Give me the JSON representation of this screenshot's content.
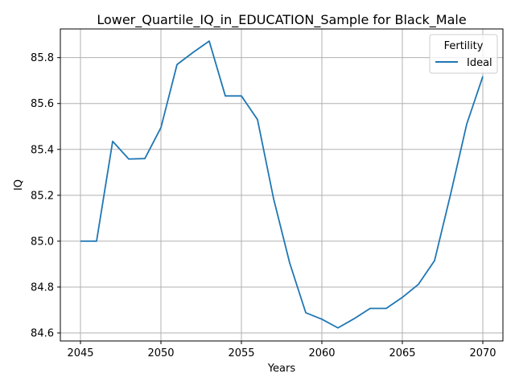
{
  "chart_data": {
    "type": "line",
    "title": "Lower_Quartile_IQ_in_EDUCATION_Sample for Black_Male",
    "xlabel": "Years",
    "ylabel": "IQ",
    "xlim": [
      2043.75,
      2071.25
    ],
    "ylim": [
      84.565,
      85.925
    ],
    "xticks": [
      2045,
      2050,
      2055,
      2060,
      2065,
      2070
    ],
    "yticks": [
      84.6,
      84.8,
      85.0,
      85.2,
      85.4,
      85.6,
      85.8
    ],
    "ytick_labels": [
      "84.6",
      "84.8",
      "85.0",
      "85.2",
      "85.4",
      "85.6",
      "85.8"
    ],
    "grid": true,
    "legend": {
      "title": "Fertility",
      "placement": "top-right"
    },
    "series": [
      {
        "name": "Ideal",
        "color": "#1f77b4",
        "x": [
          2045,
          2046,
          2047,
          2048,
          2049,
          2050,
          2051,
          2052,
          2053,
          2054,
          2055,
          2056,
          2057,
          2058,
          2059,
          2060,
          2061,
          2062,
          2063,
          2064,
          2065,
          2066,
          2067,
          2068,
          2069,
          2070
        ],
        "y": [
          85.0,
          85.0,
          85.435,
          85.358,
          85.36,
          85.495,
          85.77,
          85.823,
          85.872,
          85.633,
          85.633,
          85.53,
          85.185,
          84.905,
          84.688,
          84.66,
          84.622,
          84.662,
          84.707,
          84.707,
          84.755,
          84.812,
          84.915,
          85.205,
          85.51,
          85.718
        ]
      }
    ]
  }
}
